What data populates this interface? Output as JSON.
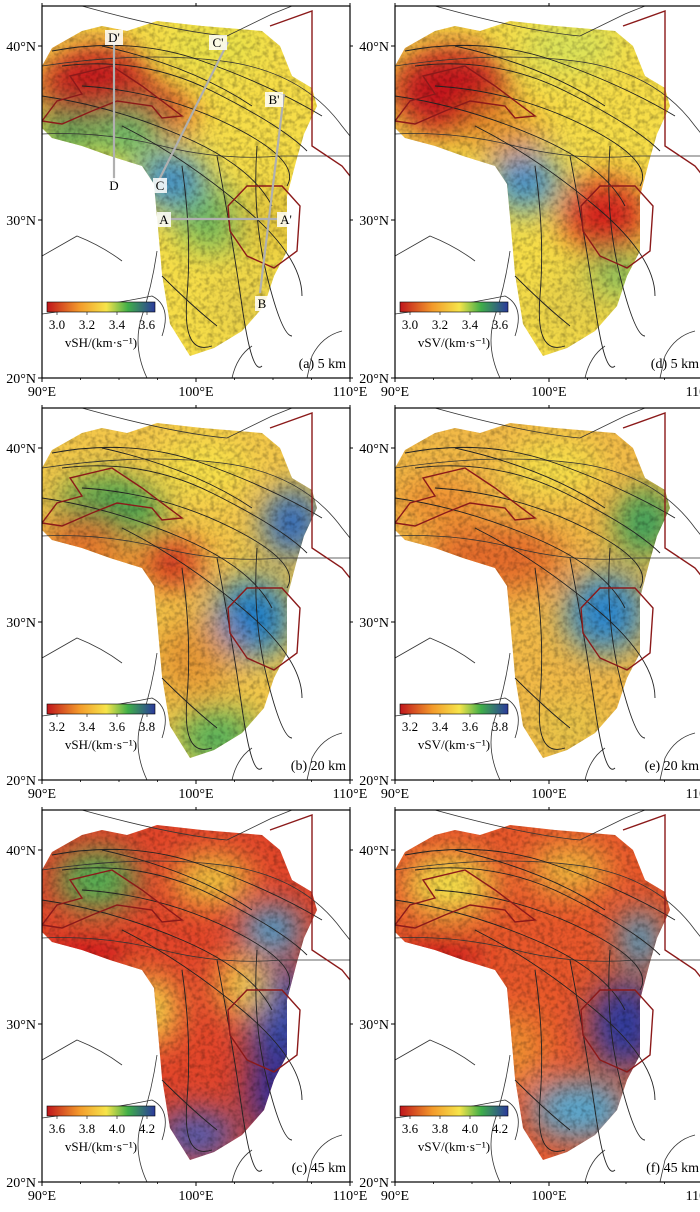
{
  "panels": [
    {
      "id": "a",
      "label": "(a) 5 km",
      "cbar_label": "vSH/(km·s⁻¹)",
      "sub": "SH",
      "ticks": [
        "3.0",
        "3.2",
        "3.4",
        "3.6"
      ],
      "col": 0,
      "row": 0
    },
    {
      "id": "b",
      "label": "(b) 20 km",
      "cbar_label": "vSH/(km·s⁻¹)",
      "sub": "SH",
      "ticks": [
        "3.2",
        "3.4",
        "3.6",
        "3.8"
      ],
      "col": 0,
      "row": 1
    },
    {
      "id": "c",
      "label": "(c) 45 km",
      "cbar_label": "vSH/(km·s⁻¹)",
      "sub": "SH",
      "ticks": [
        "3.6",
        "3.8",
        "4.0",
        "4.2"
      ],
      "col": 0,
      "row": 2
    },
    {
      "id": "d",
      "label": "(d) 5 km",
      "cbar_label": "vSV/(km·s⁻¹)",
      "sub": "SV",
      "ticks": [
        "3.0",
        "3.2",
        "3.4",
        "3.6"
      ],
      "col": 1,
      "row": 0
    },
    {
      "id": "e",
      "label": "(e) 20 km",
      "cbar_label": "vSV/(km·s⁻¹)",
      "sub": "SV",
      "ticks": [
        "3.2",
        "3.4",
        "3.6",
        "3.8"
      ],
      "col": 1,
      "row": 1
    },
    {
      "id": "f",
      "label": "(f) 45 km",
      "cbar_label": "vSV/(km·s⁻¹)",
      "sub": "SV",
      "ticks": [
        "3.6",
        "3.8",
        "4.0",
        "4.2"
      ],
      "col": 1,
      "row": 2
    }
  ],
  "lon_ticks": [
    "90°E",
    "100°E",
    "110°E"
  ],
  "lat_ticks": [
    "20°N",
    "30°N",
    "40°N"
  ],
  "profiles": [
    {
      "start": "A",
      "end": "A'"
    },
    {
      "start": "B",
      "end": "B'"
    },
    {
      "start": "C",
      "end": "C'"
    },
    {
      "start": "D",
      "end": "D'"
    }
  ],
  "colors": {
    "slow": "#c0161c",
    "mid": "#f6e44a",
    "fast": "#2b3a9c",
    "border": "#8b1a1a",
    "fault": "#222222",
    "profile": "#b0b0b0"
  }
}
